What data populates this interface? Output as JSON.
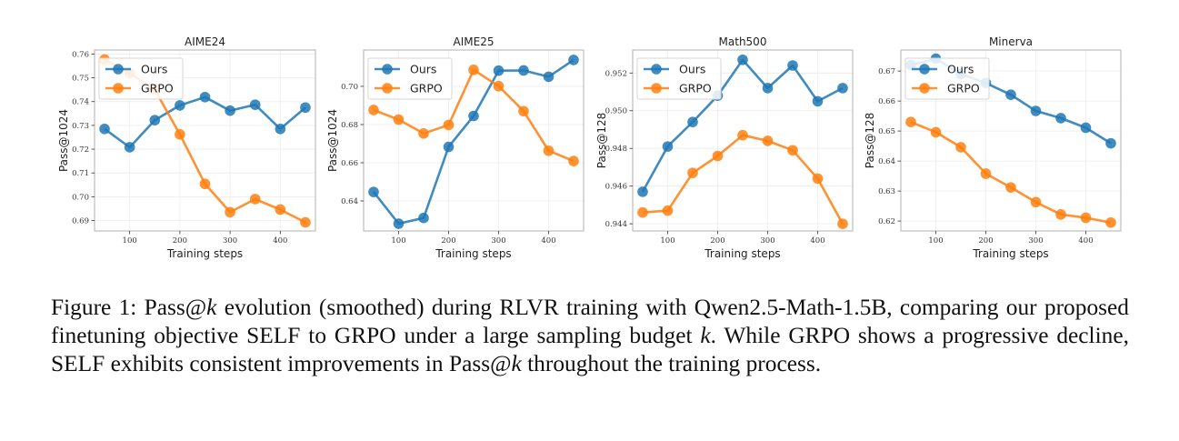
{
  "chart_data": [
    {
      "type": "line",
      "title": "AIME24",
      "xlabel": "Training steps",
      "ylabel": "Pass@1024",
      "x": [
        50,
        100,
        150,
        200,
        250,
        300,
        350,
        400,
        450
      ],
      "xticks": [
        100,
        200,
        300,
        400
      ],
      "xlim": [
        30,
        470
      ],
      "yticks": [
        0.69,
        0.7,
        0.71,
        0.72,
        0.73,
        0.74,
        0.75,
        0.76
      ],
      "ytick_labels": [
        "0.69",
        "0.70",
        "0.71",
        "0.72",
        "0.73",
        "0.74",
        "0.75",
        "0.76"
      ],
      "ylim": [
        0.6856,
        0.7617
      ],
      "grid": true,
      "legend": "top-left",
      "series": [
        {
          "name": "Ours",
          "color": "#1f77b4",
          "values": [
            0.7285,
            0.7208,
            0.7322,
            0.7384,
            0.7419,
            0.7362,
            0.7387,
            0.7285,
            0.7375
          ]
        },
        {
          "name": "GRPO",
          "color": "#ff7f0e",
          "values": [
            0.7577,
            0.752,
            0.745,
            0.7262,
            0.7054,
            0.6935,
            0.699,
            0.6946,
            0.6892
          ]
        }
      ]
    },
    {
      "type": "line",
      "title": "AIME25",
      "xlabel": "Training steps",
      "ylabel": "Pass@1024",
      "x": [
        50,
        100,
        150,
        200,
        250,
        300,
        350,
        400,
        450
      ],
      "xticks": [
        100,
        200,
        300,
        400
      ],
      "xlim": [
        30,
        470
      ],
      "yticks": [
        0.64,
        0.66,
        0.68,
        0.7
      ],
      "ytick_labels": [
        "0.64",
        "0.66",
        "0.68",
        "0.70"
      ],
      "ylim": [
        0.6243,
        0.719
      ],
      "grid": true,
      "legend": "top-left",
      "series": [
        {
          "name": "Ours",
          "color": "#1f77b4",
          "values": [
            0.6447,
            0.6281,
            0.6311,
            0.6683,
            0.6845,
            0.7082,
            0.7083,
            0.705,
            0.7138
          ]
        },
        {
          "name": "GRPO",
          "color": "#ff7f0e",
          "values": [
            0.6876,
            0.6826,
            0.6753,
            0.6798,
            0.7086,
            0.7001,
            0.687,
            0.6663,
            0.6609
          ]
        }
      ]
    },
    {
      "type": "line",
      "title": "Math500",
      "xlabel": "Training steps",
      "ylabel": "Pass@128",
      "x": [
        50,
        100,
        150,
        200,
        250,
        300,
        350,
        400,
        450
      ],
      "xticks": [
        100,
        200,
        300,
        400
      ],
      "xlim": [
        30,
        470
      ],
      "yticks": [
        0.944,
        0.946,
        0.948,
        0.95,
        0.952
      ],
      "ytick_labels": [
        "0.944",
        "0.946",
        "0.948",
        "0.950",
        "0.952"
      ],
      "ylim": [
        0.94362,
        0.95322
      ],
      "grid": true,
      "legend": "top-left",
      "series": [
        {
          "name": "Ours",
          "color": "#1f77b4",
          "values": [
            0.9457,
            0.9481,
            0.9494,
            0.9508,
            0.9527,
            0.9512,
            0.9524,
            0.9505,
            0.9512
          ]
        },
        {
          "name": "GRPO",
          "color": "#ff7f0e",
          "values": [
            0.9446,
            0.9447,
            0.9467,
            0.9476,
            0.9487,
            0.9484,
            0.9479,
            0.9464,
            0.944
          ]
        }
      ]
    },
    {
      "type": "line",
      "title": "Minerva",
      "xlabel": "Training steps",
      "ylabel": "Pass@128",
      "x": [
        50,
        100,
        150,
        200,
        250,
        300,
        350,
        400,
        450
      ],
      "xticks": [
        100,
        200,
        300,
        400
      ],
      "xlim": [
        30,
        470
      ],
      "yticks": [
        0.62,
        0.63,
        0.64,
        0.65,
        0.66,
        0.67
      ],
      "ytick_labels": [
        "0.62",
        "0.63",
        "0.64",
        "0.65",
        "0.66",
        "0.67"
      ],
      "ylim": [
        0.6167,
        0.677
      ],
      "grid": true,
      "legend": "top-left",
      "series": [
        {
          "name": "Ours",
          "color": "#1f77b4",
          "values": [
            0.672,
            0.6741,
            0.669,
            0.666,
            0.6621,
            0.6567,
            0.6543,
            0.6511,
            0.6459
          ]
        },
        {
          "name": "GRPO",
          "color": "#ff7f0e",
          "values": [
            0.653,
            0.6496,
            0.6446,
            0.6358,
            0.6312,
            0.6263,
            0.6222,
            0.6211,
            0.6195
          ]
        }
      ]
    }
  ],
  "caption": {
    "prefix": "Figure 1: Pass@",
    "k1": "k",
    "part2": " evolution (smoothed) during RLVR training with Qwen2.5-Math-1.5B, comparing our proposed finetuning objective SELF to GRPO under a large sampling budget ",
    "k2": "k",
    "part3": ".  While GRPO shows a progressive decline, SELF exhibits consistent improvements in Pass@",
    "k3": "k",
    "part4": " throughout the training process."
  }
}
